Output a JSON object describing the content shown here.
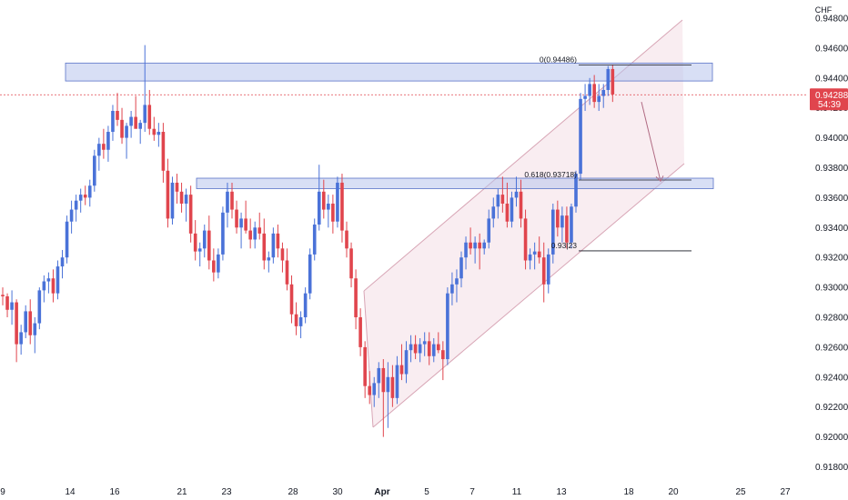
{
  "chart_data": {
    "type": "candlestick",
    "currency": "CHF",
    "ylim": [
      0.9168,
      0.9492
    ],
    "y_ticks": [
      "0.94800",
      "0.94600",
      "0.94400",
      "0.94200",
      "0.94000",
      "0.93800",
      "0.93600",
      "0.93400",
      "0.93200",
      "0.93000",
      "0.92800",
      "0.92600",
      "0.92400",
      "0.92200",
      "0.92000",
      "0.91800"
    ],
    "x_ticks": [
      "9",
      "14",
      "16",
      "21",
      "23",
      "28",
      "30",
      "Apr",
      "5",
      "7",
      "11",
      "13",
      "18",
      "20",
      "25",
      "27"
    ],
    "current_price": "0.94288",
    "countdown": "54:39",
    "fib_levels": [
      {
        "label": "0(0.94486)",
        "value": 0.94486
      },
      {
        "label": "0.618(0.93718)",
        "value": 0.93718
      },
      {
        "label": "0.93|23",
        "value": 0.93244
      }
    ],
    "zones": [
      {
        "name": "resistance-zone",
        "top": 0.945,
        "bottom": 0.9438
      },
      {
        "name": "support-zone",
        "top": 0.9373,
        "bottom": 0.9366
      }
    ],
    "colors": {
      "up": "#4a72d8",
      "down": "#e0454d",
      "zone": "#b8c5ec",
      "channel": "#f1d6df",
      "price_line": "#e0454d"
    },
    "candles": [
      [
        0.9295,
        0.93,
        0.9288,
        0.9294
      ],
      [
        0.9294,
        0.9296,
        0.928,
        0.9285
      ],
      [
        0.9285,
        0.9298,
        0.9275,
        0.929
      ],
      [
        0.929,
        0.9292,
        0.925,
        0.9262
      ],
      [
        0.9262,
        0.9275,
        0.9255,
        0.927
      ],
      [
        0.927,
        0.9288,
        0.9266,
        0.9284
      ],
      [
        0.9284,
        0.9292,
        0.9262,
        0.9268
      ],
      [
        0.9268,
        0.928,
        0.9256,
        0.9276
      ],
      [
        0.9276,
        0.93,
        0.9272,
        0.9298
      ],
      [
        0.9298,
        0.9308,
        0.929,
        0.9304
      ],
      [
        0.9304,
        0.931,
        0.9296,
        0.9306
      ],
      [
        0.9306,
        0.9312,
        0.929,
        0.9296
      ],
      [
        0.9296,
        0.9318,
        0.9292,
        0.9314
      ],
      [
        0.9314,
        0.9325,
        0.9306,
        0.932
      ],
      [
        0.932,
        0.9348,
        0.9316,
        0.9344
      ],
      [
        0.9344,
        0.9358,
        0.9336,
        0.9352
      ],
      [
        0.9352,
        0.9362,
        0.9344,
        0.9358
      ],
      [
        0.9358,
        0.9366,
        0.935,
        0.9362
      ],
      [
        0.9362,
        0.9368,
        0.9355,
        0.936
      ],
      [
        0.936,
        0.9372,
        0.9354,
        0.9368
      ],
      [
        0.9368,
        0.9392,
        0.9364,
        0.9388
      ],
      [
        0.9388,
        0.94,
        0.9378,
        0.9396
      ],
      [
        0.9396,
        0.9406,
        0.9386,
        0.9392
      ],
      [
        0.9392,
        0.9408,
        0.9384,
        0.9404
      ],
      [
        0.9404,
        0.9422,
        0.9398,
        0.9418
      ],
      [
        0.9418,
        0.943,
        0.9408,
        0.9412
      ],
      [
        0.9412,
        0.942,
        0.9396,
        0.94
      ],
      [
        0.94,
        0.941,
        0.9386,
        0.9408
      ],
      [
        0.9408,
        0.9418,
        0.94,
        0.9414
      ],
      [
        0.9414,
        0.9428,
        0.9408,
        0.9406
      ],
      [
        0.9406,
        0.9412,
        0.9396,
        0.941
      ],
      [
        0.941,
        0.9462,
        0.9404,
        0.9422
      ],
      [
        0.9422,
        0.9432,
        0.9402,
        0.9406
      ],
      [
        0.9406,
        0.9414,
        0.9398,
        0.9402
      ],
      [
        0.9402,
        0.941,
        0.9394,
        0.9404
      ],
      [
        0.9404,
        0.941,
        0.937,
        0.9378
      ],
      [
        0.9378,
        0.9386,
        0.934,
        0.9346
      ],
      [
        0.9346,
        0.9374,
        0.9342,
        0.937
      ],
      [
        0.937,
        0.9376,
        0.9356,
        0.9364
      ],
      [
        0.9364,
        0.937,
        0.935,
        0.9356
      ],
      [
        0.9356,
        0.9366,
        0.9344,
        0.9362
      ],
      [
        0.9362,
        0.9368,
        0.933,
        0.9336
      ],
      [
        0.9336,
        0.9345,
        0.9318,
        0.9324
      ],
      [
        0.9324,
        0.933,
        0.9314,
        0.9326
      ],
      [
        0.9326,
        0.9342,
        0.932,
        0.9338
      ],
      [
        0.9338,
        0.9348,
        0.9312,
        0.9318
      ],
      [
        0.9318,
        0.9326,
        0.9304,
        0.931
      ],
      [
        0.931,
        0.9326,
        0.9306,
        0.9322
      ],
      [
        0.9322,
        0.9354,
        0.9318,
        0.935
      ],
      [
        0.935,
        0.937,
        0.934,
        0.9364
      ],
      [
        0.9364,
        0.937,
        0.9346,
        0.9352
      ],
      [
        0.9352,
        0.9358,
        0.9336,
        0.934
      ],
      [
        0.934,
        0.935,
        0.9326,
        0.9346
      ],
      [
        0.9346,
        0.9358,
        0.9336,
        0.9338
      ],
      [
        0.9338,
        0.9346,
        0.9326,
        0.9332
      ],
      [
        0.9332,
        0.9344,
        0.9326,
        0.934
      ],
      [
        0.934,
        0.935,
        0.9332,
        0.9336
      ],
      [
        0.9336,
        0.9346,
        0.9312,
        0.9318
      ],
      [
        0.9318,
        0.9324,
        0.931,
        0.932
      ],
      [
        0.932,
        0.934,
        0.9316,
        0.9336
      ],
      [
        0.9336,
        0.9342,
        0.932,
        0.9326
      ],
      [
        0.9326,
        0.933,
        0.931,
        0.9318
      ],
      [
        0.9318,
        0.9326,
        0.9298,
        0.9302
      ],
      [
        0.9302,
        0.9308,
        0.9276,
        0.9282
      ],
      [
        0.9282,
        0.929,
        0.9268,
        0.9274
      ],
      [
        0.9274,
        0.9284,
        0.9266,
        0.928
      ],
      [
        0.928,
        0.93,
        0.9276,
        0.9296
      ],
      [
        0.9296,
        0.9326,
        0.9292,
        0.9322
      ],
      [
        0.9322,
        0.9346,
        0.9318,
        0.9342
      ],
      [
        0.9342,
        0.9382,
        0.9338,
        0.9364
      ],
      [
        0.9364,
        0.9372,
        0.9346,
        0.9352
      ],
      [
        0.9352,
        0.9362,
        0.934,
        0.9356
      ],
      [
        0.9356,
        0.9362,
        0.9336,
        0.9344
      ],
      [
        0.9344,
        0.9374,
        0.934,
        0.937
      ],
      [
        0.937,
        0.9376,
        0.933,
        0.9338
      ],
      [
        0.9338,
        0.9344,
        0.932,
        0.9326
      ],
      [
        0.9326,
        0.933,
        0.93,
        0.9306
      ],
      [
        0.9306,
        0.9312,
        0.9272,
        0.928
      ],
      [
        0.928,
        0.9286,
        0.9254,
        0.926
      ],
      [
        0.926,
        0.9264,
        0.9226,
        0.9234
      ],
      [
        0.9234,
        0.9244,
        0.9222,
        0.9228
      ],
      [
        0.9228,
        0.924,
        0.922,
        0.9236
      ],
      [
        0.9236,
        0.925,
        0.9226,
        0.9246
      ],
      [
        0.9246,
        0.9252,
        0.92,
        0.923
      ],
      [
        0.923,
        0.925,
        0.9206,
        0.924
      ],
      [
        0.924,
        0.9248,
        0.922,
        0.9226
      ],
      [
        0.9226,
        0.9254,
        0.9222,
        0.9248
      ],
      [
        0.9248,
        0.9262,
        0.9238,
        0.9242
      ],
      [
        0.9242,
        0.9264,
        0.9236,
        0.9258
      ],
      [
        0.9258,
        0.9268,
        0.925,
        0.9262
      ],
      [
        0.9262,
        0.9268,
        0.9252,
        0.9256
      ],
      [
        0.9256,
        0.9266,
        0.925,
        0.9262
      ],
      [
        0.9262,
        0.927,
        0.9254,
        0.9264
      ],
      [
        0.9264,
        0.927,
        0.9248,
        0.9254
      ],
      [
        0.9254,
        0.9266,
        0.925,
        0.9262
      ],
      [
        0.9262,
        0.927,
        0.9256,
        0.9258
      ],
      [
        0.9258,
        0.9264,
        0.9238,
        0.9252
      ],
      [
        0.9252,
        0.93,
        0.9248,
        0.9296
      ],
      [
        0.9296,
        0.931,
        0.9288,
        0.9302
      ],
      [
        0.9302,
        0.9312,
        0.929,
        0.9306
      ],
      [
        0.9306,
        0.9324,
        0.93,
        0.932
      ],
      [
        0.932,
        0.9334,
        0.9312,
        0.933
      ],
      [
        0.933,
        0.934,
        0.9322,
        0.9326
      ],
      [
        0.9326,
        0.9334,
        0.9316,
        0.933
      ],
      [
        0.933,
        0.9336,
        0.9312,
        0.9326
      ],
      [
        0.9326,
        0.9332,
        0.9322,
        0.933
      ],
      [
        0.933,
        0.9352,
        0.9326,
        0.9346
      ],
      [
        0.9346,
        0.936,
        0.934,
        0.9354
      ],
      [
        0.9354,
        0.9366,
        0.9346,
        0.9362
      ],
      [
        0.9362,
        0.9374,
        0.935,
        0.9356
      ],
      [
        0.9356,
        0.937,
        0.934,
        0.9344
      ],
      [
        0.9344,
        0.9364,
        0.934,
        0.936
      ],
      [
        0.936,
        0.9374,
        0.9354,
        0.9364
      ],
      [
        0.9364,
        0.9372,
        0.934,
        0.9346
      ],
      [
        0.9346,
        0.9352,
        0.9312,
        0.9318
      ],
      [
        0.9318,
        0.9326,
        0.9312,
        0.9322
      ],
      [
        0.9322,
        0.933,
        0.9312,
        0.9324
      ],
      [
        0.9324,
        0.9334,
        0.9316,
        0.932
      ],
      [
        0.932,
        0.933,
        0.929,
        0.9302
      ],
      [
        0.9302,
        0.9326,
        0.9296,
        0.9322
      ],
      [
        0.9322,
        0.9356,
        0.9316,
        0.9352
      ],
      [
        0.9352,
        0.9358,
        0.9334,
        0.934
      ],
      [
        0.934,
        0.9354,
        0.933,
        0.9348
      ],
      [
        0.9348,
        0.9354,
        0.9326,
        0.933
      ],
      [
        0.933,
        0.9356,
        0.9326,
        0.9354
      ],
      [
        0.9354,
        0.9378,
        0.935,
        0.9376
      ],
      [
        0.9376,
        0.943,
        0.9372,
        0.9426
      ],
      [
        0.9426,
        0.9436,
        0.9418,
        0.9428
      ],
      [
        0.9428,
        0.944,
        0.9422,
        0.9436
      ],
      [
        0.9436,
        0.9442,
        0.942,
        0.9424
      ],
      [
        0.9424,
        0.9436,
        0.9418,
        0.9428
      ],
      [
        0.9428,
        0.9436,
        0.942,
        0.9432
      ],
      [
        0.9432,
        0.9448,
        0.9428,
        0.9446
      ],
      [
        0.9446,
        0.9449,
        0.9424,
        0.9429
      ]
    ]
  }
}
